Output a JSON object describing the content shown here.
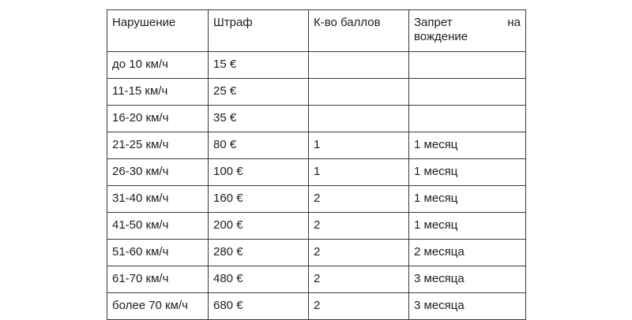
{
  "table": {
    "headers": [
      "Нарушение",
      "Штраф",
      "К-во баллов",
      "Запрет на вождение"
    ],
    "header_ban_line1_left": "Запрет",
    "header_ban_line1_right": "на",
    "header_ban_line2": "вождение",
    "rows": [
      [
        "до 10 км/ч",
        "15 €",
        "",
        ""
      ],
      [
        "11-15 км/ч",
        "25 €",
        "",
        ""
      ],
      [
        "16-20 км/ч",
        "35 €",
        "",
        ""
      ],
      [
        "21-25 км/ч",
        "80 €",
        "1",
        "1 месяц"
      ],
      [
        "26-30 км/ч",
        "100 €",
        "1",
        "1 месяц"
      ],
      [
        "31-40 км/ч",
        "160 €",
        "2",
        "1 месяц"
      ],
      [
        "41-50 км/ч",
        "200 €",
        "2",
        "1 месяц"
      ],
      [
        "51-60 км/ч",
        "280 €",
        "2",
        "2 месяца"
      ],
      [
        "61-70 км/ч",
        "480 €",
        "2",
        "3 месяца"
      ],
      [
        "более 70 км/ч",
        "680 €",
        "2",
        "3 месяца"
      ]
    ]
  }
}
